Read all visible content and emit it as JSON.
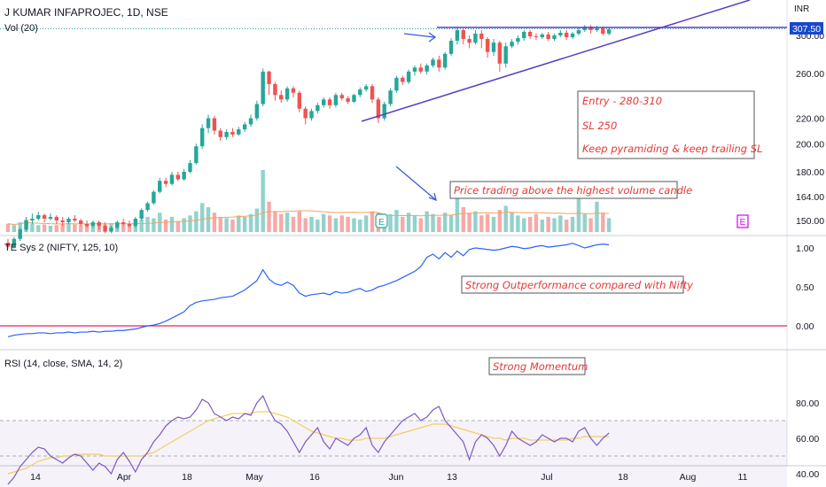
{
  "header": {
    "symbol_line": "J KUMAR INFAPROJEC, 1D, NSE",
    "volume_label": "Vol (20)",
    "currency": "INR",
    "last_price": "307.50"
  },
  "indicators": {
    "rs_label": "TE Sys 2 (NIFTY, 125, 10)",
    "rsi_label": "RSI (14, close, SMA, 14, 2)",
    "earnings_badge": "E"
  },
  "annotations": {
    "trade_plan": [
      "Entry - 280-310",
      "SL  250",
      "Keep pyramiding & keep trailing SL"
    ],
    "volume_note": "Price trading above the highest volume candle",
    "rs_note": "Strong Outperformance compared with Nifty",
    "rsi_note": "Strong Momentum"
  },
  "colors": {
    "up": "#26a69a",
    "down": "#ef5350",
    "trendline": "#5b3cc4",
    "rs_line": "#2962ff",
    "rsi_line": "#7e57c2",
    "rsi_ma": "#f0d060",
    "zero_line": "#e91e63",
    "annotation_text": "#e53935",
    "arrow": "#3a5bd9"
  },
  "chart_data": [
    {
      "type": "candlestick",
      "pane": "price",
      "y_ticks": [
        "300.00",
        "260.00",
        "220.00",
        "200.00",
        "180.00",
        "164.00",
        "150.00"
      ],
      "y_tick_values": [
        300,
        260,
        220,
        200,
        180,
        164,
        150
      ],
      "scale": "log",
      "x_ticks": [
        "14",
        "Apr",
        "18",
        "May",
        "16",
        "Jun",
        "13",
        "Jul",
        "18",
        "Aug",
        "11"
      ],
      "candles": [
        [
          138,
          136,
          140,
          135
        ],
        [
          136,
          140,
          141,
          135
        ],
        [
          140,
          145,
          146,
          139
        ],
        [
          145,
          150,
          152,
          144
        ],
        [
          150,
          151,
          154,
          148
        ],
        [
          151,
          153,
          155,
          150
        ],
        [
          153,
          151,
          154,
          149
        ],
        [
          151,
          152,
          154,
          150
        ],
        [
          152,
          150,
          153,
          148
        ],
        [
          150,
          149,
          152,
          147
        ],
        [
          149,
          151,
          152,
          148
        ],
        [
          151,
          150,
          153,
          149
        ],
        [
          150,
          148,
          151,
          147
        ],
        [
          148,
          147,
          150,
          146
        ],
        [
          147,
          149,
          150,
          146
        ],
        [
          149,
          147,
          150,
          145
        ],
        [
          147,
          144,
          149,
          143
        ],
        [
          144,
          146,
          147,
          143
        ],
        [
          146,
          149,
          150,
          145
        ],
        [
          149,
          148,
          151,
          147
        ],
        [
          148,
          147,
          150,
          146
        ],
        [
          147,
          151,
          152,
          146
        ],
        [
          151,
          156,
          157,
          150
        ],
        [
          156,
          160,
          161,
          155
        ],
        [
          160,
          167,
          168,
          159
        ],
        [
          167,
          174,
          176,
          166
        ],
        [
          174,
          172,
          176,
          170
        ],
        [
          172,
          178,
          180,
          171
        ],
        [
          178,
          175,
          180,
          174
        ],
        [
          175,
          180,
          182,
          174
        ],
        [
          180,
          186,
          188,
          179
        ],
        [
          186,
          198,
          200,
          185
        ],
        [
          198,
          212,
          215,
          196
        ],
        [
          212,
          220,
          223,
          208
        ],
        [
          220,
          210,
          222,
          207
        ],
        [
          210,
          205,
          212,
          202
        ],
        [
          205,
          209,
          211,
          203
        ],
        [
          209,
          207,
          212,
          205
        ],
        [
          207,
          211,
          213,
          206
        ],
        [
          211,
          215,
          217,
          209
        ],
        [
          215,
          220,
          223,
          213
        ],
        [
          220,
          232,
          235,
          218
        ],
        [
          232,
          262,
          265,
          230
        ],
        [
          262,
          250,
          263,
          240
        ],
        [
          250,
          240,
          252,
          235
        ],
        [
          240,
          236,
          244,
          233
        ],
        [
          236,
          246,
          248,
          234
        ],
        [
          246,
          242,
          248,
          238
        ],
        [
          242,
          228,
          244,
          225
        ],
        [
          228,
          220,
          230,
          215
        ],
        [
          220,
          226,
          228,
          218
        ],
        [
          226,
          231,
          233,
          224
        ],
        [
          231,
          236,
          238,
          229
        ],
        [
          236,
          231,
          238,
          228
        ],
        [
          231,
          240,
          242,
          229
        ],
        [
          240,
          237,
          242,
          235
        ],
        [
          237,
          234,
          239,
          232
        ],
        [
          234,
          240,
          241,
          233
        ],
        [
          240,
          245,
          247,
          238
        ],
        [
          245,
          248,
          250,
          243
        ],
        [
          248,
          236,
          250,
          233
        ],
        [
          236,
          220,
          238,
          216
        ],
        [
          220,
          232,
          234,
          218
        ],
        [
          232,
          244,
          246,
          230
        ],
        [
          244,
          256,
          258,
          242
        ],
        [
          256,
          252,
          258,
          249
        ],
        [
          252,
          262,
          264,
          250
        ],
        [
          262,
          266,
          268,
          258
        ],
        [
          266,
          262,
          270,
          260
        ],
        [
          262,
          268,
          270,
          259
        ],
        [
          268,
          274,
          276,
          266
        ],
        [
          274,
          266,
          278,
          262
        ],
        [
          266,
          280,
          282,
          264
        ],
        [
          280,
          294,
          297,
          278
        ],
        [
          294,
          306,
          310,
          290
        ],
        [
          306,
          296,
          308,
          290
        ],
        [
          296,
          292,
          300,
          286
        ],
        [
          292,
          302,
          306,
          290
        ],
        [
          302,
          296,
          306,
          286
        ],
        [
          296,
          282,
          298,
          276
        ],
        [
          282,
          292,
          296,
          278
        ],
        [
          292,
          270,
          294,
          262
        ],
        [
          270,
          288,
          292,
          266
        ],
        [
          288,
          293,
          296,
          286
        ],
        [
          293,
          297,
          300,
          290
        ],
        [
          297,
          304,
          306,
          294
        ],
        [
          304,
          299,
          306,
          296
        ],
        [
          299,
          298,
          302,
          295
        ],
        [
          298,
          301,
          303,
          296
        ],
        [
          301,
          296,
          304,
          294
        ],
        [
          296,
          300,
          302,
          294
        ],
        [
          300,
          303,
          306,
          298
        ],
        [
          303,
          298,
          306,
          295
        ],
        [
          298,
          302,
          304,
          296
        ],
        [
          302,
          306,
          309,
          300
        ],
        [
          306,
          310,
          312,
          304
        ],
        [
          310,
          306,
          312,
          302
        ],
        [
          306,
          308,
          311,
          304
        ],
        [
          308,
          302,
          310,
          300
        ],
        [
          302,
          307,
          309,
          300
        ]
      ],
      "volume": [
        12,
        10,
        14,
        18,
        12,
        10,
        11,
        9,
        10,
        12,
        13,
        11,
        10,
        12,
        14,
        12,
        11,
        13,
        12,
        11,
        12,
        15,
        18,
        22,
        20,
        28,
        18,
        22,
        16,
        20,
        24,
        30,
        42,
        36,
        28,
        22,
        20,
        18,
        24,
        22,
        26,
        34,
        90,
        44,
        30,
        26,
        28,
        22,
        30,
        20,
        22,
        18,
        26,
        24,
        20,
        24,
        22,
        20,
        18,
        24,
        30,
        28,
        20,
        26,
        32,
        22,
        28,
        24,
        20,
        30,
        26,
        22,
        28,
        24,
        54,
        36,
        28,
        30,
        24,
        26,
        22,
        32,
        38,
        28,
        24,
        20,
        22,
        26,
        18,
        22,
        20,
        24,
        18,
        22,
        66,
        26,
        20,
        44,
        28,
        20
      ],
      "volume_ma_label": "",
      "highest_volume_index": 42
    },
    {
      "type": "line",
      "pane": "relative_strength",
      "name": "",
      "y_ticks": [
        "1.00",
        "0.50",
        "0.00"
      ],
      "y_tick_values": [
        1.0,
        0.5,
        0.0
      ],
      "values": [
        -0.14,
        -0.12,
        -0.11,
        -0.1,
        -0.1,
        -0.09,
        -0.09,
        -0.1,
        -0.09,
        -0.09,
        -0.08,
        -0.09,
        -0.08,
        -0.08,
        -0.07,
        -0.08,
        -0.07,
        -0.07,
        -0.06,
        -0.06,
        -0.05,
        -0.04,
        -0.02,
        0.0,
        0.01,
        0.03,
        0.06,
        0.1,
        0.14,
        0.18,
        0.26,
        0.3,
        0.32,
        0.33,
        0.34,
        0.36,
        0.37,
        0.38,
        0.42,
        0.46,
        0.52,
        0.58,
        0.72,
        0.6,
        0.54,
        0.52,
        0.56,
        0.52,
        0.42,
        0.38,
        0.4,
        0.41,
        0.42,
        0.4,
        0.44,
        0.42,
        0.43,
        0.46,
        0.48,
        0.44,
        0.46,
        0.5,
        0.52,
        0.55,
        0.58,
        0.62,
        0.66,
        0.7,
        0.76,
        0.88,
        0.92,
        0.86,
        0.94,
        0.88,
        0.96,
        0.9,
        0.98,
        1.0,
        0.99,
        0.98,
        0.97,
        0.98,
        1.0,
        1.02,
        1.01,
        0.99,
        1.0,
        1.02,
        1.03,
        1.01,
        1.02,
        1.03,
        1.04,
        1.06,
        1.03,
        1.0,
        1.02,
        1.04,
        1.05,
        1.04
      ]
    },
    {
      "type": "line",
      "pane": "rsi",
      "name": "",
      "y_ticks": [
        "80.00",
        "60.00",
        "40.00"
      ],
      "y_tick_values": [
        80,
        60,
        40
      ],
      "band": [
        30,
        70
      ],
      "midline": 50,
      "rsi": [
        34,
        38,
        44,
        48,
        52,
        55,
        54,
        50,
        48,
        46,
        49,
        51,
        50,
        46,
        42,
        46,
        44,
        40,
        48,
        52,
        47,
        41,
        48,
        52,
        58,
        62,
        67,
        70,
        72,
        71,
        72,
        76,
        82,
        80,
        74,
        72,
        70,
        72,
        71,
        74,
        73,
        80,
        84,
        76,
        70,
        68,
        64,
        58,
        52,
        58,
        62,
        66,
        58,
        54,
        60,
        58,
        56,
        60,
        62,
        66,
        56,
        52,
        58,
        62,
        66,
        70,
        72,
        74,
        70,
        72,
        76,
        78,
        70,
        66,
        62,
        58,
        48,
        58,
        62,
        60,
        56,
        50,
        56,
        64,
        60,
        58,
        56,
        58,
        62,
        60,
        58,
        60,
        60,
        58,
        64,
        66,
        60,
        56,
        60,
        63
      ],
      "rsi_ma": [
        40,
        41,
        42,
        43,
        45,
        47,
        48,
        49,
        49,
        50,
        50,
        51,
        51,
        51,
        51,
        51,
        50,
        50,
        50,
        50,
        50,
        50,
        50,
        51,
        52,
        54,
        56,
        58,
        60,
        62,
        64,
        66,
        68,
        70,
        71,
        72,
        73,
        74,
        74,
        74,
        74,
        75,
        75,
        75,
        74,
        73,
        72,
        70,
        68,
        66,
        64,
        63,
        62,
        61,
        60,
        60,
        59,
        59,
        59,
        60,
        60,
        60,
        60,
        61,
        62,
        63,
        64,
        65,
        66,
        67,
        68,
        68,
        68,
        67,
        66,
        65,
        64,
        63,
        62,
        61,
        60,
        60,
        59,
        60,
        60,
        60,
        59,
        59,
        59,
        59,
        59,
        59,
        59,
        60,
        60,
        61,
        61,
        61,
        61,
        61
      ]
    }
  ]
}
